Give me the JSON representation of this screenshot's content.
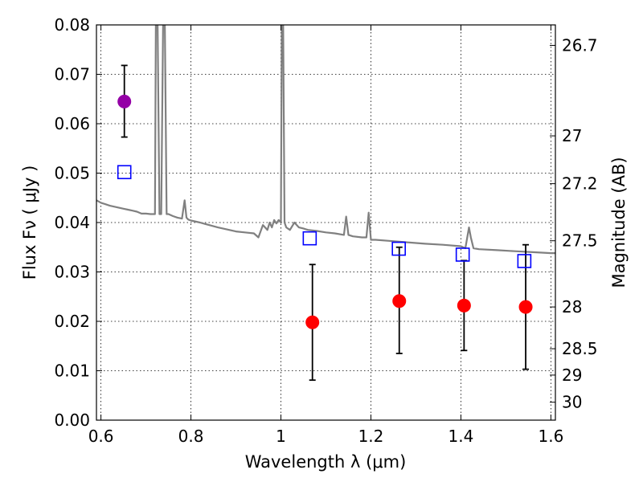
{
  "chart_data": {
    "type": "scatter",
    "xlabel": "Wavelength  λ (μm)",
    "ylabel": "Flux  Fν  ( μJy )",
    "y2label": "Magnitude (AB)",
    "xlim": [
      0.59,
      1.61
    ],
    "ylim": [
      0.0,
      0.08
    ],
    "grid": true,
    "x_ticks": [
      {
        "value": 0.6,
        "label": "0.6"
      },
      {
        "value": 0.8,
        "label": "0.8"
      },
      {
        "value": 1.0,
        "label": "1"
      },
      {
        "value": 1.2,
        "label": "1.2"
      },
      {
        "value": 1.4,
        "label": "1.4"
      },
      {
        "value": 1.6,
        "label": "1.6"
      }
    ],
    "y_ticks": [
      {
        "value": 0.0,
        "label": "0.00"
      },
      {
        "value": 0.01,
        "label": "0.01"
      },
      {
        "value": 0.02,
        "label": "0.02"
      },
      {
        "value": 0.03,
        "label": "0.03"
      },
      {
        "value": 0.04,
        "label": "0.04"
      },
      {
        "value": 0.05,
        "label": "0.05"
      },
      {
        "value": 0.06,
        "label": "0.06"
      },
      {
        "value": 0.07,
        "label": "0.07"
      },
      {
        "value": 0.08,
        "label": "0.08"
      }
    ],
    "y2_ticks": [
      {
        "value": 26.7,
        "label": "26.7"
      },
      {
        "value": 27.0,
        "label": "27"
      },
      {
        "value": 27.2,
        "label": "27.2"
      },
      {
        "value": 27.5,
        "label": "27.5"
      },
      {
        "value": 28.0,
        "label": "28"
      },
      {
        "value": 28.5,
        "label": "28.5"
      },
      {
        "value": 29.0,
        "label": "29"
      },
      {
        "value": 30.0,
        "label": "30"
      }
    ],
    "series": [
      {
        "kind": "line",
        "color": "#808080",
        "x": [
          0.59,
          0.6,
          0.61,
          0.62,
          0.63,
          0.64,
          0.65,
          0.66,
          0.67,
          0.68,
          0.69,
          0.7,
          0.71,
          0.72,
          0.722,
          0.726,
          0.73,
          0.734,
          0.738,
          0.742,
          0.746,
          0.75,
          0.755,
          0.76,
          0.77,
          0.78,
          0.786,
          0.79,
          0.794,
          0.8,
          0.82,
          0.84,
          0.86,
          0.88,
          0.9,
          0.92,
          0.94,
          0.95,
          0.96,
          0.97,
          0.975,
          0.98,
          0.985,
          0.99,
          0.995,
          1.0,
          1.002,
          1.005,
          1.008,
          1.012,
          1.02,
          1.03,
          1.04,
          1.05,
          1.06,
          1.08,
          1.1,
          1.12,
          1.14,
          1.145,
          1.15,
          1.16,
          1.18,
          1.19,
          1.195,
          1.2,
          1.205,
          1.21,
          1.24,
          1.28,
          1.32,
          1.36,
          1.4,
          1.41,
          1.418,
          1.422,
          1.428,
          1.44,
          1.48,
          1.52,
          1.56,
          1.6,
          1.61
        ],
        "y": [
          0.0445,
          0.044,
          0.0437,
          0.0434,
          0.0432,
          0.043,
          0.0428,
          0.0426,
          0.0424,
          0.0422,
          0.0418,
          0.0418,
          0.0417,
          0.0417,
          0.08,
          0.08,
          0.0417,
          0.0417,
          0.08,
          0.08,
          0.0417,
          0.0417,
          0.0415,
          0.0413,
          0.041,
          0.0408,
          0.0445,
          0.041,
          0.0406,
          0.0404,
          0.04,
          0.0395,
          0.039,
          0.0386,
          0.0382,
          0.038,
          0.0378,
          0.037,
          0.0395,
          0.0385,
          0.04,
          0.039,
          0.0405,
          0.0398,
          0.0405,
          0.04,
          0.08,
          0.08,
          0.04,
          0.039,
          0.0385,
          0.04,
          0.039,
          0.0388,
          0.0385,
          0.0383,
          0.038,
          0.0378,
          0.0375,
          0.0412,
          0.0375,
          0.0372,
          0.037,
          0.037,
          0.042,
          0.0365,
          0.0365,
          0.0365,
          0.0363,
          0.036,
          0.0357,
          0.0355,
          0.0352,
          0.0348,
          0.039,
          0.037,
          0.0348,
          0.0346,
          0.0344,
          0.0342,
          0.034,
          0.0338,
          0.0338
        ]
      },
      {
        "kind": "errorbar",
        "marker": "circle",
        "color": "#9400a6",
        "points": [
          {
            "x": 0.652,
            "y": 0.0645,
            "err_low": 0.0072,
            "err_high": 0.0073
          }
        ]
      },
      {
        "kind": "errorbar",
        "marker": "circle",
        "color": "#ff0000",
        "points": [
          {
            "x": 1.07,
            "y": 0.0198,
            "err_low": 0.0117,
            "err_high": 0.0117
          },
          {
            "x": 1.263,
            "y": 0.0241,
            "err_low": 0.0106,
            "err_high": 0.0109
          },
          {
            "x": 1.407,
            "y": 0.0232,
            "err_low": 0.0091,
            "err_high": 0.0091
          },
          {
            "x": 1.544,
            "y": 0.0229,
            "err_low": 0.0126,
            "err_high": 0.0126
          }
        ]
      },
      {
        "kind": "scatter",
        "marker": "square-open",
        "color": "#0000ff",
        "points": [
          {
            "x": 0.652,
            "y": 0.0502
          },
          {
            "x": 1.064,
            "y": 0.0368
          },
          {
            "x": 1.262,
            "y": 0.0347
          },
          {
            "x": 1.404,
            "y": 0.0335
          },
          {
            "x": 1.541,
            "y": 0.0322
          }
        ]
      }
    ]
  }
}
